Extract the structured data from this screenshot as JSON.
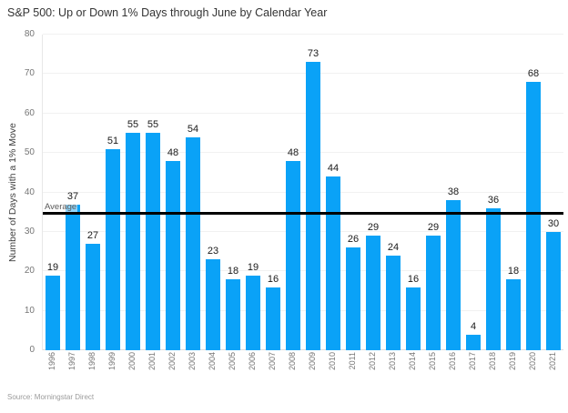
{
  "header": {
    "title": "S&P 500: Up or Down 1% Days through June by Calendar Year"
  },
  "footer": {
    "source": "Source: Morningstar Direct"
  },
  "colors": {
    "bar": "#0aa2f7",
    "average_line": "#000000",
    "gridline": "#f1f1f1",
    "tick_text": "#757575",
    "value_text": "#1a1a1a",
    "title_text": "#333333",
    "source_text": "#9b9b9b"
  },
  "chart_data": {
    "type": "bar",
    "title": "S&P 500: Up or Down 1% Days through June by Calendar Year",
    "xlabel": "",
    "ylabel": "Number of Days with a 1% Move",
    "categories": [
      "1996",
      "1997",
      "1998",
      "1999",
      "2000",
      "2001",
      "2002",
      "2003",
      "2004",
      "2005",
      "2006",
      "2007",
      "2008",
      "2009",
      "2010",
      "2011",
      "2012",
      "2013",
      "2014",
      "2015",
      "2016",
      "2017",
      "2018",
      "2019",
      "2020",
      "2021"
    ],
    "values": [
      19,
      37,
      27,
      51,
      55,
      55,
      48,
      54,
      23,
      18,
      19,
      16,
      48,
      73,
      44,
      26,
      29,
      24,
      16,
      29,
      38,
      4,
      36,
      18,
      68,
      30
    ],
    "ylim": [
      0,
      80
    ],
    "ytick_step": 10,
    "yticks": [
      0,
      10,
      20,
      30,
      40,
      50,
      60,
      70,
      80
    ],
    "grid": true,
    "legend_position": "none",
    "annotations": [
      {
        "type": "horizontal-line",
        "label": "Average",
        "value": 34.8
      }
    ]
  }
}
